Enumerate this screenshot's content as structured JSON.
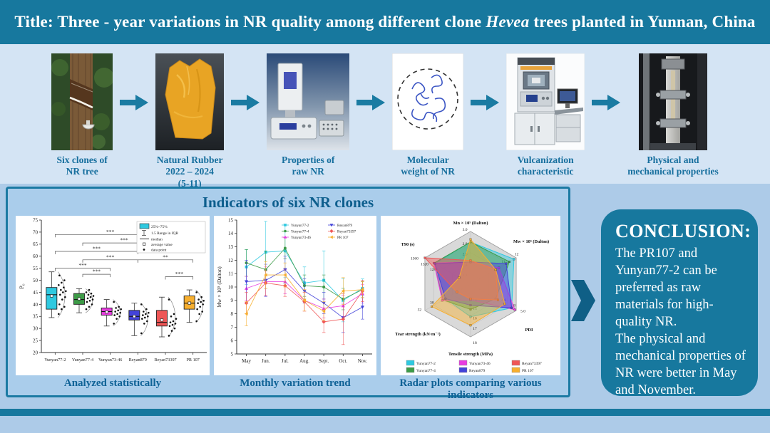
{
  "title": {
    "prefix": "Title: Three - year variations in NR quality among different clone ",
    "italic": "Hevea",
    "suffix": " trees planted in Yunnan, China"
  },
  "workflow": {
    "items": [
      {
        "id": "tree",
        "icon": "rubber-tree-tapping-photo",
        "caption_lines": [
          "Six clones of",
          "NR tree"
        ]
      },
      {
        "id": "rubber",
        "icon": "natural-rubber-sheet-photo",
        "caption_lines": [
          "Natural Rubber",
          "2022 – 2024",
          "(5-11)"
        ]
      },
      {
        "id": "plastimeter",
        "icon": "plasticity-tester-photo",
        "caption_lines": [
          "Properties of",
          "raw NR"
        ]
      },
      {
        "id": "molecule",
        "icon": "polymer-chain-diagram",
        "caption_lines": [
          "Molecular",
          "weight of NR"
        ]
      },
      {
        "id": "vulcanizer",
        "icon": "vulcanization-machine-photo",
        "caption_lines": [
          "Vulcanization",
          "characteristic"
        ]
      },
      {
        "id": "tensile",
        "icon": "tensile-testing-machine-photo",
        "caption_lines": [
          "Physical and",
          "mechanical properties"
        ]
      }
    ]
  },
  "panel": {
    "title": "Indicators of six NR clones",
    "captions": [
      "Analyzed statistically",
      "Monthly variation trend",
      "Radar plots comparing various indicators"
    ]
  },
  "conclusion": {
    "heading": "CONCLUSION:",
    "paragraphs": [
      "The PR107 and Yunyan77-2 can be preferred as raw materials for high-quality NR.",
      "The physical and mechanical properties of NR were better in May and November."
    ]
  },
  "colors": {
    "teal_bar": "#17789e",
    "panel_border": "#1b7aa3",
    "panel_bg": "#aacdeb",
    "page_bg": "#adcbe8",
    "workflow_bg": "#d4e4f4",
    "caption_text": "#10659a",
    "conclusion_bg": "#17789e",
    "flow_arrow": "#1a7ba2",
    "chevron": "#0f5f86"
  },
  "chart_data": [
    {
      "type": "box",
      "ylabel": "P₀",
      "ylim": [
        20,
        75
      ],
      "ytick_step": 5,
      "legend": [
        "25%~75%",
        "1.5 Range in IQR",
        "median",
        "average value",
        "data point"
      ],
      "categories": [
        "Yunyan77-2",
        "Yunyan77-4",
        "Yunyan73-46",
        "Reyan879",
        "Reyan73397",
        "PR 107"
      ],
      "colors": [
        "#2fc9e0",
        "#3d9b47",
        "#e83ce0",
        "#4343d9",
        "#ef5656",
        "#f7af2f"
      ],
      "boxes": [
        {
          "low": 34.5,
          "q1": 38,
          "median": 44,
          "q3": 47,
          "high": 53.5,
          "mean": 43.5,
          "points": [
            36,
            38,
            39,
            40,
            42,
            43,
            44,
            45,
            45.5,
            46,
            47,
            48,
            49,
            50,
            52
          ]
        },
        {
          "low": 36.5,
          "q1": 40,
          "median": 42,
          "q3": 44.5,
          "high": 46.5,
          "mean": 42.3,
          "points": [
            38,
            39,
            40,
            41,
            41.5,
            42,
            42.5,
            43,
            43.5,
            44,
            44.5,
            45,
            46
          ]
        },
        {
          "low": 31,
          "q1": 35.5,
          "median": 37,
          "q3": 38.5,
          "high": 42,
          "mean": 36.8,
          "points": [
            32,
            34,
            35,
            35.5,
            36,
            36.5,
            37,
            37.5,
            38,
            38.5,
            39,
            41
          ]
        },
        {
          "low": 27,
          "q1": 33.5,
          "median": 35,
          "q3": 37.5,
          "high": 40.5,
          "mean": 35,
          "points": [
            28,
            32,
            33,
            34,
            34.5,
            35,
            35.5,
            36,
            36.5,
            37,
            38,
            40
          ]
        },
        {
          "low": 26.5,
          "q1": 31,
          "median": 32.5,
          "q3": 37.5,
          "high": 43,
          "mean": 33.5,
          "points": [
            27,
            29,
            30,
            31,
            31.5,
            32,
            32.5,
            33,
            34,
            35,
            36,
            42
          ]
        },
        {
          "low": 32.5,
          "q1": 38,
          "median": 40.5,
          "q3": 43.5,
          "high": 46,
          "mean": 40.5,
          "points": [
            33,
            36,
            37,
            38,
            39,
            40,
            40.5,
            41,
            41.5,
            42,
            43,
            45
          ]
        }
      ],
      "brackets": [
        {
          "from": 0,
          "to": 4,
          "y": 69,
          "label": "***"
        },
        {
          "from": 1,
          "to": 4,
          "y": 65.5,
          "label": "***"
        },
        {
          "from": 0,
          "to": 3,
          "y": 62,
          "label": "***"
        },
        {
          "from": 1,
          "to": 3,
          "y": 58.5,
          "label": "***"
        },
        {
          "from": 3,
          "to": 5,
          "y": 58.5,
          "label": "**"
        },
        {
          "from": 0,
          "to": 2,
          "y": 55,
          "label": "***"
        },
        {
          "from": 1,
          "to": 2,
          "y": 52.5,
          "label": "***"
        },
        {
          "from": 4,
          "to": 5,
          "y": 51.5,
          "label": "***"
        }
      ]
    },
    {
      "type": "line",
      "x_ticks": [
        "May",
        "Jun.",
        "Jul.",
        "Aug.",
        "Sept.",
        "Oct.",
        "Nov."
      ],
      "ylabel": "Mw × 10⁵ (Dalton)",
      "ylim": [
        5,
        15
      ],
      "ytick_step": 1,
      "series": [
        {
          "name": "Yunyan77-2",
          "color": "#2fc9e0",
          "marker": "square",
          "values": [
            11.5,
            12.6,
            12.7,
            10.3,
            10.5,
            9.0,
            9.9
          ],
          "err": [
            1.3,
            2.3,
            2.0,
            1.2,
            2.2,
            1.6,
            0.7
          ]
        },
        {
          "name": "Yunyan77-4",
          "color": "#3d9b47",
          "marker": "circle",
          "values": [
            11.8,
            11.3,
            12.9,
            10.1,
            10.0,
            9.1,
            9.8
          ],
          "err": [
            1.0,
            1.4,
            0.8,
            0.8,
            0.9,
            0.8,
            0.6
          ]
        },
        {
          "name": "Yunyan73-46",
          "color": "#e83ce0",
          "marker": "triangle-up",
          "values": [
            9.9,
            10.4,
            10.4,
            9.0,
            8.4,
            8.6,
            9.5
          ],
          "err": [
            0.9,
            1.1,
            0.9,
            0.8,
            0.7,
            0.8,
            0.7
          ]
        },
        {
          "name": "Reyan879",
          "color": "#4343d9",
          "marker": "triangle-down",
          "values": [
            10.4,
            10.5,
            11.3,
            9.7,
            8.8,
            7.7,
            8.5
          ],
          "err": [
            1.6,
            1.2,
            1.0,
            0.9,
            0.8,
            1.1,
            0.9
          ]
        },
        {
          "name": "Reyan73397",
          "color": "#ef5656",
          "marker": "diamond",
          "values": [
            8.8,
            10.3,
            10.1,
            8.9,
            7.4,
            7.6,
            9.7
          ],
          "err": [
            0.8,
            0.9,
            0.8,
            0.7,
            0.8,
            1.9,
            0.8
          ]
        },
        {
          "name": "PR 107",
          "color": "#f7af2f",
          "marker": "triangle-left",
          "values": [
            8.0,
            10.9,
            10.9,
            9.0,
            8.2,
            9.7,
            9.8
          ],
          "err": [
            0.9,
            1.0,
            0.9,
            0.8,
            0.7,
            1.0,
            0.6
          ]
        }
      ],
      "legend_columns": [
        [
          "Yunyan77-2",
          "Yunyan77-4",
          "Yunyan73-46"
        ],
        [
          "Reyan879",
          "Reyan73397",
          "PR 107"
        ]
      ]
    },
    {
      "type": "radar",
      "axes": [
        {
          "title": "Mn × 10⁵ (Dalton)",
          "ticks": [
            {
              "t": 1,
              "label": "3.0"
            },
            {
              "t": 0.8,
              "label": "2.8"
            },
            {
              "t": 0.6,
              "label": "2.6"
            },
            {
              "t": 0.4,
              "label": "2.4"
            },
            {
              "t": 0.2,
              "label": "2.2"
            }
          ]
        },
        {
          "title": "Mw × 10⁵ (Dalton)",
          "ticks": [
            {
              "t": 1,
              "label": "12"
            },
            {
              "t": 0.78,
              "label": "11"
            },
            {
              "t": 0.55,
              "label": "10"
            }
          ]
        },
        {
          "title": "PDI",
          "ticks": [
            {
              "t": 1,
              "label": "5.0"
            },
            {
              "t": 0.85,
              "label": "4.8"
            },
            {
              "t": 0.65,
              "label": "4.6"
            }
          ]
        },
        {
          "title": "Tensile strength (MPa)",
          "ticks": [
            {
              "t": 1,
              "label": "18"
            },
            {
              "t": 0.8,
              "label": "17"
            },
            {
              "t": 0.6,
              "label": "16"
            },
            {
              "t": 0.42,
              "label": "15"
            },
            {
              "t": 0.25,
              "label": "14"
            }
          ]
        },
        {
          "title": "Tear strength (kN·m⁻¹)",
          "ticks": [
            {
              "t": 1,
              "label": "32"
            },
            {
              "t": 0.8,
              "label": "30"
            },
            {
              "t": 0.55,
              "label": "28"
            }
          ]
        },
        {
          "title": "T90 (s)",
          "ticks": [
            {
              "t": 1,
              "label": "1360"
            },
            {
              "t": 0.85,
              "label": "1320"
            },
            {
              "t": 0.65,
              "label": "1280"
            }
          ]
        }
      ],
      "series": [
        {
          "name": "Yunyan77-2",
          "color": "#2fc9e0",
          "values_norm": [
            0.8,
            0.95,
            0.9,
            0.62,
            0.55,
            0.78
          ]
        },
        {
          "name": "Yunyan77-4",
          "color": "#3d9b47",
          "values_norm": [
            0.8,
            0.85,
            0.55,
            0.48,
            0.6,
            0.8
          ]
        },
        {
          "name": "Yunyan73-46",
          "color": "#e83ce0",
          "values_norm": [
            0.42,
            0.62,
            0.97,
            0.3,
            0.62,
            0.8
          ]
        },
        {
          "name": "Reyan879",
          "color": "#4343d9",
          "values_norm": [
            0.42,
            0.78,
            0.9,
            0.4,
            0.55,
            0.78
          ]
        },
        {
          "name": "Reyan73397",
          "color": "#ef5656",
          "values_norm": [
            0.45,
            0.55,
            0.6,
            0.28,
            0.3,
            1.0
          ]
        },
        {
          "name": "PR 107",
          "color": "#f7af2f",
          "values_norm": [
            0.85,
            0.55,
            0.75,
            0.78,
            0.85,
            0.25
          ]
        }
      ],
      "legend_rows": [
        [
          "Yunyan77-2",
          "Yunyan73-46",
          "Reyan73397"
        ],
        [
          "Yunyan77-4",
          "Reyan879",
          "PR 107"
        ]
      ]
    }
  ]
}
